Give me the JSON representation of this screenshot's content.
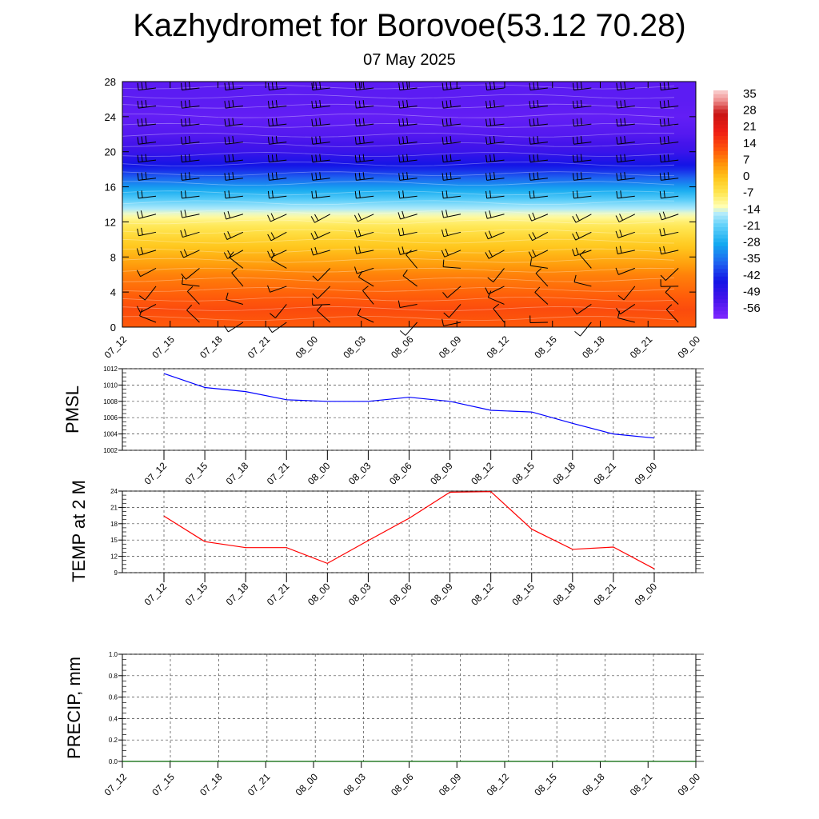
{
  "title": "Kazhydromet for Borovoe(53.12 70.28)",
  "subtitle": "07 May 2025",
  "time_labels": [
    "07_12",
    "07_15",
    "07_18",
    "07_21",
    "08_00",
    "08_03",
    "08_06",
    "08_09",
    "08_12",
    "08_15",
    "08_18",
    "08_21",
    "09_00"
  ],
  "chart_data": [
    {
      "type": "heatmap",
      "title": "",
      "ylabel": "",
      "y_ticks": [
        0,
        4,
        8,
        12,
        16,
        20,
        24,
        28
      ],
      "ylim": [
        0,
        28
      ],
      "colorbar": {
        "labels": [
          35,
          28,
          21,
          14,
          7,
          0,
          -7,
          -14,
          -21,
          -28,
          -35,
          -42,
          -49,
          -56
        ],
        "range": [
          -60,
          38
        ]
      },
      "temperature_profile": {
        "heights": [
          0,
          2,
          4,
          6,
          8,
          10,
          12,
          13,
          14,
          16,
          18,
          20,
          22,
          24,
          26,
          28
        ],
        "values": [
          12,
          14,
          11,
          8,
          3,
          -2,
          -8,
          -13,
          -18,
          -30,
          -42,
          -50,
          -54,
          -56,
          -55,
          -55
        ]
      },
      "wind_barbs": "present"
    },
    {
      "type": "line",
      "ylabel": "PMSL",
      "categories": [
        "07_12",
        "07_15",
        "07_18",
        "07_21",
        "08_00",
        "08_03",
        "08_06",
        "08_09",
        "08_12",
        "08_15",
        "08_18",
        "08_21",
        "09_00"
      ],
      "y_ticks": [
        1002,
        1004,
        1006,
        1008,
        1010,
        1012
      ],
      "ylim": [
        1002,
        1012
      ],
      "color": "#0000ff",
      "values": [
        1011.4,
        1009.7,
        1009.2,
        1008.2,
        1008.0,
        1008.0,
        1008.5,
        1008.0,
        1006.9,
        1006.7,
        1005.3,
        1004.0,
        1003.5
      ]
    },
    {
      "type": "line",
      "ylabel": "TEMP at 2 M",
      "categories": [
        "07_12",
        "07_15",
        "07_18",
        "07_21",
        "08_00",
        "08_03",
        "08_06",
        "08_09",
        "08_12",
        "08_15",
        "08_18",
        "08_21",
        "09_00"
      ],
      "y_ticks": [
        9,
        12,
        15,
        18,
        21,
        24
      ],
      "ylim": [
        9,
        24
      ],
      "color": "#ff0000",
      "values": [
        19.4,
        14.7,
        13.6,
        13.6,
        10.7,
        14.9,
        19.0,
        23.8,
        23.9,
        17.0,
        13.3,
        13.7,
        9.7
      ]
    },
    {
      "type": "line",
      "ylabel": "PRECIP, mm",
      "categories": [
        "07_12",
        "07_15",
        "07_18",
        "07_21",
        "08_00",
        "08_03",
        "08_06",
        "08_09",
        "08_12",
        "08_15",
        "08_18",
        "08_21",
        "09_00"
      ],
      "y_ticks": [
        "0.0",
        "0.2",
        "0.4",
        "0.6",
        "0.8",
        "1.0"
      ],
      "ylim": [
        0,
        1
      ],
      "color": "#006400",
      "values": [
        0,
        0,
        0,
        0,
        0,
        0,
        0,
        0,
        0,
        0,
        0,
        0,
        0
      ]
    }
  ]
}
